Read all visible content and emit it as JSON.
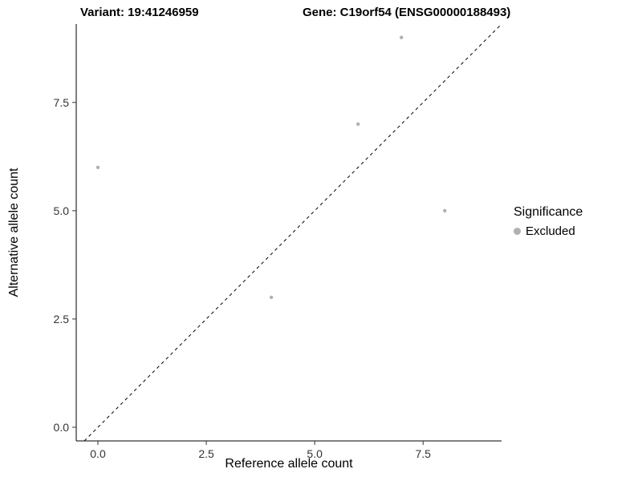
{
  "chart_data": {
    "type": "scatter",
    "title_left": "Variant: 19:41246959",
    "title_right": "Gene: C19orf54 (ENSG00000188493)",
    "xlabel": "Reference allele count",
    "ylabel": "Alternative allele count",
    "xlim": [
      -0.5,
      9.31
    ],
    "ylim": [
      -0.315,
      9.31
    ],
    "x_ticks": [
      0.0,
      2.5,
      5.0,
      7.5
    ],
    "y_ticks": [
      0.0,
      2.5,
      5.0,
      7.5
    ],
    "grid": false,
    "series": [
      {
        "name": "Excluded",
        "color": "#b0b0b0",
        "points": [
          [
            0,
            6
          ],
          [
            4,
            3
          ],
          [
            6,
            7
          ],
          [
            7,
            9
          ],
          [
            8,
            5
          ]
        ]
      }
    ],
    "reference_line": {
      "type": "identity",
      "equation": "y = x",
      "style": "dashed",
      "color": "#000000"
    },
    "legend": {
      "title": "Significance",
      "position": "right",
      "items": [
        {
          "label": "Excluded",
          "color": "#b0b0b0"
        }
      ]
    },
    "axis_color": "#000000",
    "tick_label_color": "#333333"
  }
}
